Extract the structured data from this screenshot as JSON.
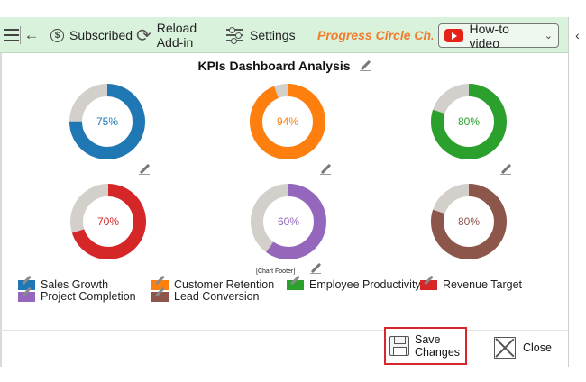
{
  "toolbar": {
    "subscribed_label": "Subscribed",
    "reload_label_line1": "Reload",
    "reload_label_line2": "Add-in",
    "settings_label": "Settings",
    "brand_label": "Progress Circle Ch...",
    "howto_label": "How-to video"
  },
  "dashboard": {
    "title": "KPIs Dashboard Analysis",
    "footer_label": "[Chart Footer]"
  },
  "chart_data": {
    "type": "pie",
    "track_color": "#d3d0cb",
    "charts": [
      {
        "name": "Sales Growth",
        "value": 75,
        "label": "75%",
        "color": "#1f77b4"
      },
      {
        "name": "Customer Retention",
        "value": 94,
        "label": "94%",
        "color": "#ff7f0e"
      },
      {
        "name": "Employee Productivity",
        "value": 80,
        "label": "80%",
        "color": "#2ca02c"
      },
      {
        "name": "Revenue Target",
        "value": 70,
        "label": "70%",
        "color": "#d62728"
      },
      {
        "name": "Project Completion",
        "value": 60,
        "label": "60%",
        "color": "#9467bd"
      },
      {
        "name": "Lead Conversion",
        "value": 80,
        "label": "80%",
        "color": "#8c564b"
      }
    ]
  },
  "buttons": {
    "save_line1": "Save",
    "save_line2": "Changes",
    "close_label": "Close"
  },
  "icons": {
    "menu": "hamburger-icon",
    "back": "back-arrow-icon",
    "subscribed": "dollar-coin-icon",
    "reload": "reload-icon",
    "settings": "sliders-icon",
    "video": "youtube-icon",
    "save": "floppy-disk-icon",
    "close": "close-x-icon",
    "edit": "pencil-icon"
  }
}
